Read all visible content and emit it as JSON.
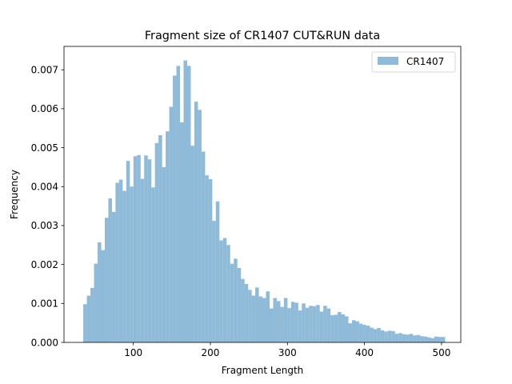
{
  "chart_data": {
    "type": "bar",
    "title": "Fragment size of CR1407 CUT&RUN data",
    "xlabel": "Fragment Length",
    "ylabel": "Frequency",
    "xlim": [
      10,
      525
    ],
    "ylim": [
      0,
      0.0076
    ],
    "xticks": [
      100,
      200,
      300,
      400,
      500
    ],
    "yticks": [
      0.0,
      0.001,
      0.002,
      0.003,
      0.004,
      0.005,
      0.006,
      0.007
    ],
    "ytick_labels": [
      "0.000",
      "0.001",
      "0.002",
      "0.003",
      "0.004",
      "0.005",
      "0.006",
      "0.007"
    ],
    "legend": {
      "position": "top-right",
      "entries": [
        "CR1407"
      ]
    },
    "grid": false,
    "bin_start": 35,
    "bin_width": 4.65,
    "series": [
      {
        "name": "CR1407",
        "color": "#8fbbd9",
        "values": [
          0.00098,
          0.0012,
          0.0014,
          0.00202,
          0.00257,
          0.00237,
          0.0032,
          0.0037,
          0.00335,
          0.0041,
          0.00418,
          0.00389,
          0.00466,
          0.004,
          0.00478,
          0.00481,
          0.0042,
          0.0048,
          0.0047,
          0.00398,
          0.00512,
          0.00532,
          0.0045,
          0.00542,
          0.00605,
          0.00685,
          0.0071,
          0.00565,
          0.00724,
          0.0071,
          0.00505,
          0.00618,
          0.00597,
          0.0049,
          0.00429,
          0.00419,
          0.00312,
          0.00362,
          0.00262,
          0.00268,
          0.0025,
          0.00202,
          0.00215,
          0.00191,
          0.00163,
          0.0015,
          0.00135,
          0.0012,
          0.00141,
          0.00118,
          0.00114,
          0.00131,
          0.00087,
          0.00114,
          0.00106,
          0.00091,
          0.00114,
          0.00088,
          0.00104,
          0.00102,
          0.00082,
          0.001,
          0.00089,
          0.00094,
          0.00093,
          0.00096,
          0.00079,
          0.00094,
          0.00087,
          0.0007,
          0.00071,
          0.00078,
          0.00072,
          0.00067,
          0.00049,
          0.00057,
          0.00054,
          0.00048,
          0.00045,
          0.00043,
          0.00038,
          0.00034,
          0.00037,
          0.00031,
          0.00028,
          0.0003,
          0.00029,
          0.00022,
          0.00024,
          0.00021,
          0.0002,
          0.00022,
          0.00018,
          0.00019,
          0.00016,
          0.00015,
          0.00013,
          0.00011,
          0.00015,
          0.00014,
          0.00014
        ]
      }
    ]
  }
}
